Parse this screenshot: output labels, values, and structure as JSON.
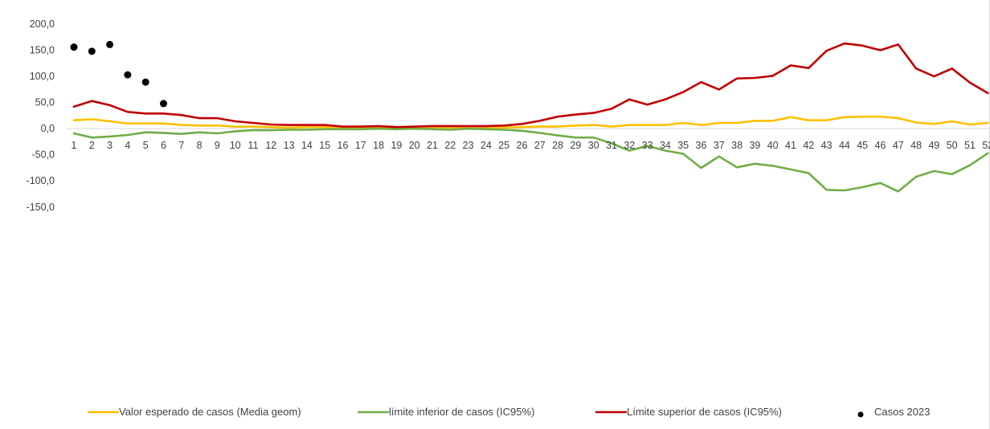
{
  "chart_data": {
    "type": "line",
    "title": "",
    "xlabel": "",
    "ylabel": "",
    "ylim": [
      -150,
      200
    ],
    "ytick_step": 50,
    "ytick_labels": [
      "200,0",
      "150,0",
      "100,0",
      "50,0",
      "0,0",
      "-50,0",
      "-100,0",
      "-150,0"
    ],
    "x": [
      1,
      2,
      3,
      4,
      5,
      6,
      7,
      8,
      9,
      10,
      11,
      12,
      13,
      14,
      15,
      16,
      17,
      18,
      19,
      20,
      21,
      22,
      23,
      24,
      25,
      26,
      27,
      28,
      29,
      30,
      31,
      32,
      33,
      34,
      35,
      36,
      37,
      38,
      39,
      40,
      41,
      42,
      43,
      44,
      45,
      46,
      47,
      48,
      49,
      50,
      51,
      52
    ],
    "legend_position": "bottom",
    "series": [
      {
        "name": "Valor esperado de casos (Media geom)",
        "kind": "line",
        "color": "#FFC000",
        "values": [
          16,
          18,
          14,
          10,
          10,
          10,
          7,
          6,
          6,
          4,
          4,
          3,
          2,
          3,
          3,
          2,
          2,
          2,
          2,
          2,
          3,
          2,
          2,
          2,
          2,
          3,
          4,
          4,
          6,
          7,
          4,
          7,
          7,
          7,
          11,
          7,
          11,
          11,
          15,
          15,
          22,
          16,
          16,
          22,
          23,
          23,
          20,
          12,
          9,
          14,
          8,
          11
        ]
      },
      {
        "name": "límite inferior de casos (IC95%)",
        "kind": "line",
        "color": "#70AD47",
        "values": [
          -9,
          -17,
          -15,
          -12,
          -7,
          -8,
          -10,
          -7,
          -9,
          -5,
          -3,
          -3,
          -2,
          -2,
          -1,
          -1,
          -1,
          0,
          -1,
          0,
          -1,
          -2,
          0,
          -1,
          -2,
          -4,
          -8,
          -13,
          -17,
          -17,
          -28,
          -42,
          -33,
          -42,
          -48,
          -75,
          -53,
          -74,
          -67,
          -71,
          -78,
          -85,
          -117,
          -118,
          -112,
          -104,
          -120,
          -92,
          -81,
          -87,
          -70,
          -47
        ]
      },
      {
        "name": "Límite superior de casos (IC95%)",
        "kind": "line",
        "color": "#C00000",
        "values": [
          42,
          53,
          45,
          32,
          29,
          29,
          26,
          20,
          20,
          14,
          11,
          8,
          7,
          7,
          7,
          4,
          4,
          5,
          3,
          4,
          5,
          5,
          5,
          5,
          6,
          9,
          15,
          23,
          27,
          30,
          38,
          56,
          46,
          56,
          70,
          89,
          75,
          96,
          97,
          101,
          121,
          116,
          149,
          163,
          159,
          150,
          161,
          115,
          100,
          115,
          88,
          68
        ]
      },
      {
        "name": "Casos 2023",
        "kind": "scatter",
        "color": "#000000",
        "x": [
          1,
          2,
          3,
          4,
          5,
          6
        ],
        "values": [
          156,
          148,
          161,
          103,
          89,
          48
        ]
      }
    ]
  }
}
